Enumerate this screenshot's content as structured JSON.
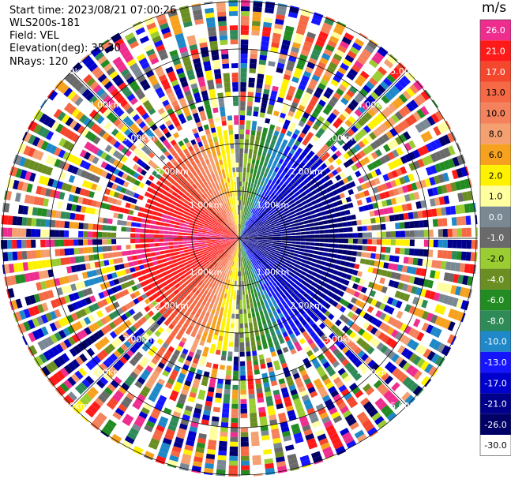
{
  "header": {
    "start_time": "Start time: 2023/08/21 07:00:26",
    "instrument": "WLS200s-181",
    "field": "Field: VEL",
    "elevation": "Elevation(deg): 35.30",
    "nrays": "NRays: 120"
  },
  "colorbar": {
    "unit": "m/s",
    "levels": [
      {
        "label": "26.0",
        "color": "#ee2d8f"
      },
      {
        "label": "21.0",
        "color": "#ff1a1a"
      },
      {
        "label": "17.0",
        "color": "#f4472d"
      },
      {
        "label": "13.0",
        "color": "#f56a45"
      },
      {
        "label": "10.0",
        "color": "#f4825d"
      },
      {
        "label": "8.0",
        "color": "#f4a071"
      },
      {
        "label": "6.0",
        "color": "#f6a21f"
      },
      {
        "label": "2.0",
        "color": "#fff200"
      },
      {
        "label": "1.0",
        "color": "#ffffa0"
      },
      {
        "label": "0.0",
        "color": "#7a8894"
      },
      {
        "label": "-1.0",
        "color": "#6a6a6a"
      },
      {
        "label": "-2.0",
        "color": "#9acd32"
      },
      {
        "label": "-4.0",
        "color": "#6b8e23"
      },
      {
        "label": "-6.0",
        "color": "#228b22"
      },
      {
        "label": "-8.0",
        "color": "#2e8b57"
      },
      {
        "label": "-10.0",
        "color": "#1e88c8"
      },
      {
        "label": "-13.0",
        "color": "#1515ff"
      },
      {
        "label": "-17.0",
        "color": "#0000cd"
      },
      {
        "label": "-21.0",
        "color": "#00008b"
      },
      {
        "label": "-26.0",
        "color": "#000066"
      },
      {
        "label": "-30.0",
        "color": "#ffffff"
      }
    ]
  },
  "chart_data": {
    "type": "heatmap",
    "projection": "polar-ppi",
    "field": "VEL",
    "nrays": 120,
    "range_rings_km": [
      1.0,
      2.0,
      3.0,
      4.0,
      5.0
    ],
    "ring_label": "km",
    "spokes": 8,
    "clean_sector": {
      "max_range_km": 2.7,
      "approach_side_azimuth_deg": 270,
      "approach_value_ms": 17.0,
      "receding_side_azimuth_deg": 115,
      "receding_value_ms": -17.0
    },
    "outer_ranges": "noise (random velocities across full scale)"
  }
}
